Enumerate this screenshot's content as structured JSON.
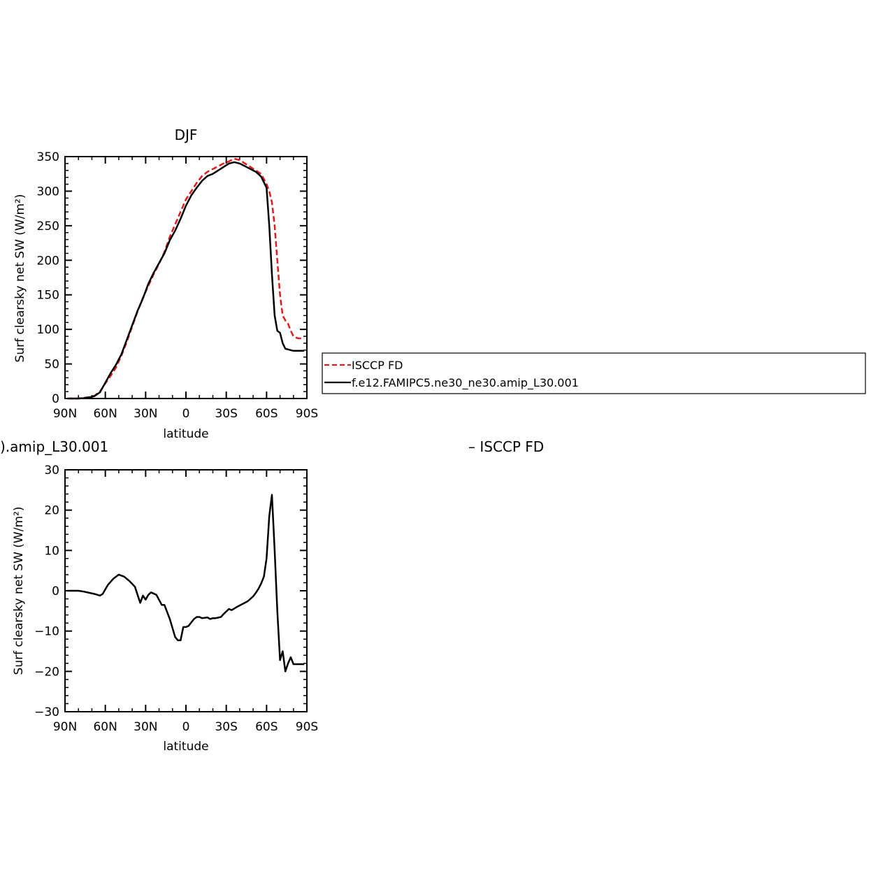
{
  "chart_data": [
    {
      "type": "line",
      "title": "DJF",
      "xlabel": "latitude",
      "ylabel": "Surf clearsky net SW (W/m²)",
      "xlim": [
        -90,
        90
      ],
      "ylim": [
        0,
        350
      ],
      "xticks": [
        -90,
        -60,
        -30,
        0,
        30,
        60,
        90
      ],
      "xticklabels": [
        "90N",
        "60N",
        "30N",
        "0",
        "30S",
        "60S",
        "90S"
      ],
      "yticks": [
        0,
        50,
        100,
        150,
        200,
        250,
        300,
        350
      ],
      "yticklabels": [
        "0",
        "50",
        "100",
        "150",
        "200",
        "250",
        "300",
        "350"
      ],
      "grid": false,
      "series": [
        {
          "name": "ISCCP FD",
          "color": "#e41a1c",
          "dash": "dashed",
          "x": [
            -88,
            -84,
            -80,
            -76,
            -72,
            -68,
            -64,
            -60,
            -56,
            -52,
            -48,
            -44,
            -40,
            -36,
            -32,
            -28,
            -24,
            -20,
            -16,
            -12,
            -8,
            -4,
            0,
            4,
            8,
            12,
            16,
            20,
            24,
            28,
            32,
            36,
            40,
            44,
            48,
            52,
            56,
            60,
            62,
            64,
            66,
            68,
            70,
            72,
            74,
            76,
            78,
            80,
            82,
            84,
            86,
            88
          ],
          "values": [
            0,
            0,
            0,
            1,
            2,
            4,
            10,
            22,
            33,
            45,
            62,
            82,
            104,
            126,
            146,
            163,
            180,
            195,
            212,
            234,
            252,
            270,
            288,
            300,
            312,
            322,
            328,
            332,
            336,
            340,
            343,
            347,
            345,
            340,
            335,
            330,
            325,
            310,
            300,
            284,
            250,
            200,
            150,
            120,
            113,
            108,
            98,
            90,
            88,
            87,
            87,
            87
          ]
        },
        {
          "name": "f.e12.FAMIPC5.ne30_ne30.amip_L30.001",
          "color": "#000000",
          "dash": "solid",
          "x": [
            -88,
            -84,
            -80,
            -76,
            -72,
            -68,
            -64,
            -60,
            -56,
            -52,
            -48,
            -44,
            -40,
            -36,
            -32,
            -28,
            -24,
            -20,
            -16,
            -12,
            -8,
            -4,
            0,
            4,
            8,
            12,
            16,
            20,
            24,
            28,
            32,
            36,
            40,
            44,
            48,
            52,
            56,
            60,
            62,
            64,
            66,
            68,
            70,
            72,
            74,
            76,
            78,
            80,
            82,
            84,
            86,
            88
          ],
          "values": [
            0,
            0,
            0,
            0.5,
            1.5,
            3.5,
            9,
            23,
            37,
            49,
            64,
            85,
            106,
            127,
            145,
            166,
            182,
            196,
            210,
            229,
            243,
            260,
            279,
            294,
            305,
            315,
            322,
            325,
            330,
            335,
            340,
            342,
            340,
            336,
            332,
            328,
            321,
            305,
            250,
            180,
            120,
            98,
            95,
            80,
            72,
            71,
            70,
            69,
            69,
            69,
            69,
            69
          ]
        }
      ]
    },
    {
      "type": "line",
      "title": ").amip_L30.001",
      "title_right": "– ISCCP FD",
      "xlabel": "latitude",
      "ylabel": "Surf clearsky net SW (W/m²)",
      "xlim": [
        -90,
        90
      ],
      "ylim": [
        -30,
        30
      ],
      "xticks": [
        -90,
        -60,
        -30,
        0,
        30,
        60,
        90
      ],
      "xticklabels": [
        "90N",
        "60N",
        "30N",
        "0",
        "30S",
        "60S",
        "90S"
      ],
      "yticks": [
        -30,
        -20,
        -10,
        0,
        10,
        20,
        30
      ],
      "yticklabels": [
        "−30",
        "−20",
        "−10",
        "0",
        "10",
        "20",
        "30"
      ],
      "grid": false,
      "series": [
        {
          "color": "#000000",
          "dash": "solid",
          "x": [
            -88,
            -80,
            -76,
            -72,
            -68,
            -64,
            -62,
            -58,
            -54,
            -50,
            -46,
            -42,
            -38,
            -36,
            -34,
            -32,
            -30,
            -28,
            -26,
            -22,
            -18,
            -16,
            -12,
            -8,
            -6,
            -4,
            -2,
            0,
            2,
            6,
            8,
            10,
            12,
            16,
            18,
            20,
            22,
            26,
            28,
            32,
            34,
            38,
            42,
            46,
            50,
            52,
            54,
            56,
            58,
            60,
            62,
            64,
            66,
            68,
            70,
            72,
            74,
            76,
            78,
            80,
            82,
            84,
            86,
            88
          ],
          "values": [
            0,
            0,
            -0.2,
            -0.5,
            -0.8,
            -1.2,
            -0.8,
            1.5,
            3,
            4,
            3.5,
            2.4,
            1,
            -1,
            -3,
            -1.2,
            -2.2,
            -1,
            -0.4,
            -1,
            -3.5,
            -3.5,
            -7,
            -11.5,
            -12.3,
            -12.3,
            -9,
            -9,
            -8.7,
            -7,
            -6.5,
            -6.5,
            -6.8,
            -6.6,
            -7,
            -6.8,
            -6.8,
            -6.5,
            -5.8,
            -4.5,
            -4.8,
            -4,
            -3.3,
            -2.6,
            -1.4,
            -0.5,
            0.5,
            1.8,
            3.5,
            8,
            18.5,
            23.8,
            10,
            -5,
            -17.2,
            -15,
            -20,
            -18,
            -16.5,
            -18.2,
            -18.2,
            -18.2,
            -18.2,
            -18.2
          ]
        }
      ]
    }
  ],
  "legend": {
    "placement": "right",
    "entries": [
      {
        "label": "ISCCP FD",
        "color": "#e41a1c",
        "dash": "dashed"
      },
      {
        "label": "f.e12.FAMIPC5.ne30_ne30.amip_L30.001",
        "color": "#000000",
        "dash": "solid"
      }
    ]
  }
}
